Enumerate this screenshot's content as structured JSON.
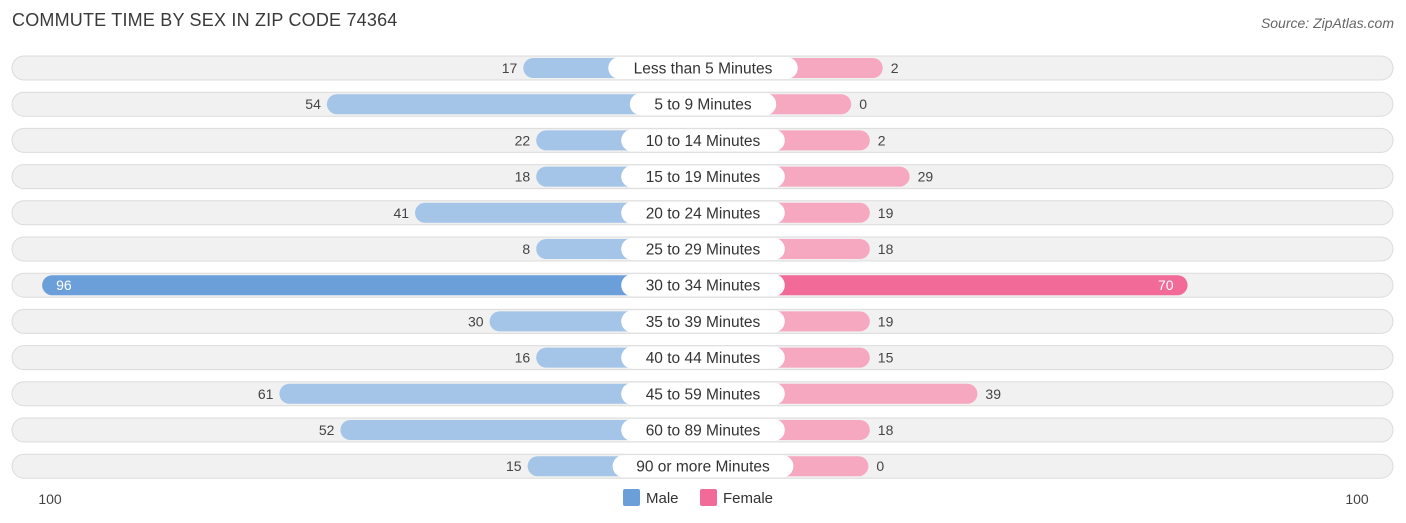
{
  "title": "COMMUTE TIME BY SEX IN ZIP CODE 74364",
  "source": "Source: ZipAtlas.com",
  "colors": {
    "male": "#a4c4e8",
    "male_strong": "#6a9fda",
    "female": "#f5a8c0",
    "female_strong": "#f26b98"
  },
  "chart_data": {
    "type": "bar",
    "orientation": "horizontal-diverging",
    "categories": [
      "Less than 5 Minutes",
      "5 to 9 Minutes",
      "10 to 14 Minutes",
      "15 to 19 Minutes",
      "20 to 24 Minutes",
      "25 to 29 Minutes",
      "30 to 34 Minutes",
      "35 to 39 Minutes",
      "40 to 44 Minutes",
      "45 to 59 Minutes",
      "60 to 89 Minutes",
      "90 or more Minutes"
    ],
    "series": [
      {
        "name": "Male",
        "values": [
          17,
          54,
          22,
          18,
          41,
          8,
          96,
          30,
          16,
          61,
          52,
          15
        ]
      },
      {
        "name": "Female",
        "values": [
          2,
          0,
          2,
          29,
          19,
          18,
          70,
          19,
          15,
          39,
          18,
          0
        ]
      }
    ],
    "axis": {
      "left_label": "100",
      "right_label": "100",
      "max": 100
    },
    "legend": {
      "position": "bottom-center",
      "items": [
        "Male",
        "Female"
      ]
    },
    "grid": false
  }
}
